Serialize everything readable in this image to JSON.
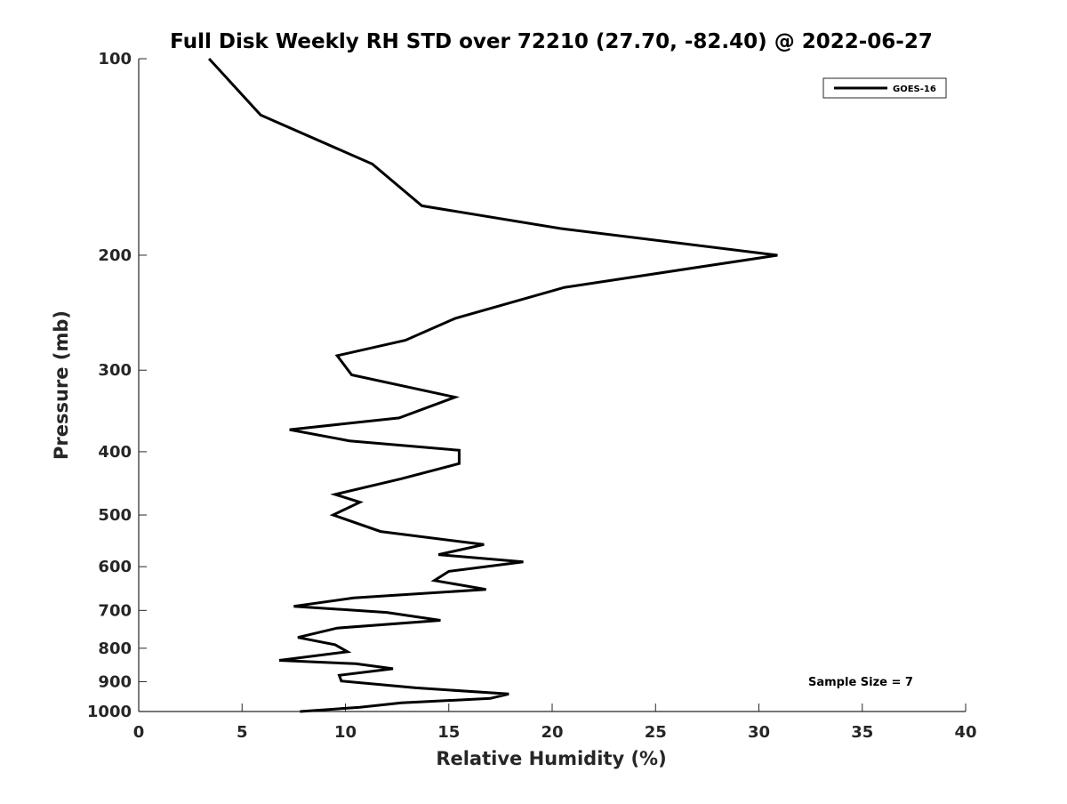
{
  "chart_data": {
    "type": "line",
    "title": "Full Disk Weekly RH STD over 72210 (27.70, -82.40) @ 2022-06-27",
    "xlabel": "Relative Humidity (%)",
    "ylabel": "Pressure (mb)",
    "xlim": [
      0,
      40
    ],
    "ylim": [
      100,
      1000
    ],
    "yscale": "log",
    "y_reversed": true,
    "grid": false,
    "legend_position": "top-right",
    "xticks": [
      0,
      5,
      10,
      15,
      20,
      25,
      30,
      35,
      40
    ],
    "yticks": [
      100,
      200,
      300,
      400,
      500,
      600,
      700,
      800,
      900,
      1000
    ],
    "colors": {
      "series": "#000000",
      "axis": "#262626"
    },
    "series": [
      {
        "name": "GOES-16",
        "points": [
          [
            3.4,
            100
          ],
          [
            5.9,
            122
          ],
          [
            11.3,
            145
          ],
          [
            13.7,
            168
          ],
          [
            20.4,
            182
          ],
          [
            30.9,
            200
          ],
          [
            20.6,
            224
          ],
          [
            15.3,
            250
          ],
          [
            12.9,
            270
          ],
          [
            9.6,
            285
          ],
          [
            10.3,
            305
          ],
          [
            15.3,
            330
          ],
          [
            12.6,
            355
          ],
          [
            7.3,
            370
          ],
          [
            10.2,
            385
          ],
          [
            15.5,
            398
          ],
          [
            15.5,
            417
          ],
          [
            12.7,
            440
          ],
          [
            9.5,
            465
          ],
          [
            10.7,
            478
          ],
          [
            9.4,
            500
          ],
          [
            11.7,
            530
          ],
          [
            16.7,
            555
          ],
          [
            14.5,
            575
          ],
          [
            18.6,
            590
          ],
          [
            15.0,
            610
          ],
          [
            14.3,
            630
          ],
          [
            16.8,
            650
          ],
          [
            10.4,
            670
          ],
          [
            7.5,
            690
          ],
          [
            12.0,
            705
          ],
          [
            14.6,
            725
          ],
          [
            9.6,
            745
          ],
          [
            7.7,
            770
          ],
          [
            9.5,
            790
          ],
          [
            10.1,
            810
          ],
          [
            6.8,
            835
          ],
          [
            10.5,
            845
          ],
          [
            12.3,
            860
          ],
          [
            9.7,
            880
          ],
          [
            9.8,
            898
          ],
          [
            13.4,
            920
          ],
          [
            17.9,
            940
          ],
          [
            17.0,
            955
          ],
          [
            12.7,
            970
          ],
          [
            10.7,
            985
          ],
          [
            7.8,
            1000
          ]
        ]
      }
    ],
    "annotations": [
      {
        "text": "Sample Size = 7",
        "x": 35.9,
        "y": 900
      }
    ]
  }
}
